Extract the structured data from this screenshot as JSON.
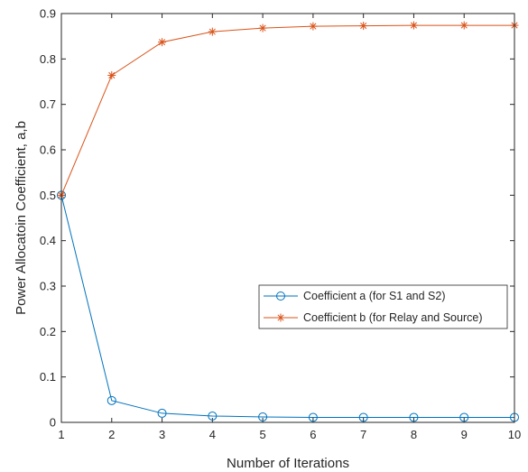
{
  "chart_data": {
    "type": "line",
    "title": "",
    "xlabel": "Number of Iterations",
    "ylabel": "Power Allocatoin Coefficient, a,b",
    "xlim": [
      1,
      10
    ],
    "ylim": [
      0,
      0.9
    ],
    "x_ticks": [
      "1",
      "2",
      "3",
      "4",
      "5",
      "6",
      "7",
      "8",
      "9",
      "10"
    ],
    "y_ticks": [
      "0",
      "0.1",
      "0.2",
      "0.3",
      "0.4",
      "0.5",
      "0.6",
      "0.7",
      "0.8",
      "0.9"
    ],
    "grid": false,
    "box": true,
    "legend_position": "middle-right",
    "x": [
      1,
      2,
      3,
      4,
      5,
      6,
      7,
      8,
      9,
      10
    ],
    "series": [
      {
        "name": "Coefficient a (for S1 and S2)",
        "values": [
          0.5,
          0.048,
          0.02,
          0.014,
          0.012,
          0.011,
          0.011,
          0.011,
          0.011,
          0.011
        ],
        "color": "#0072BD",
        "marker": "circle"
      },
      {
        "name": "Coefficient b (for Relay and Source)",
        "values": [
          0.5,
          0.764,
          0.837,
          0.86,
          0.868,
          0.872,
          0.873,
          0.874,
          0.874,
          0.874
        ],
        "color": "#D95319",
        "marker": "asterisk"
      }
    ]
  }
}
